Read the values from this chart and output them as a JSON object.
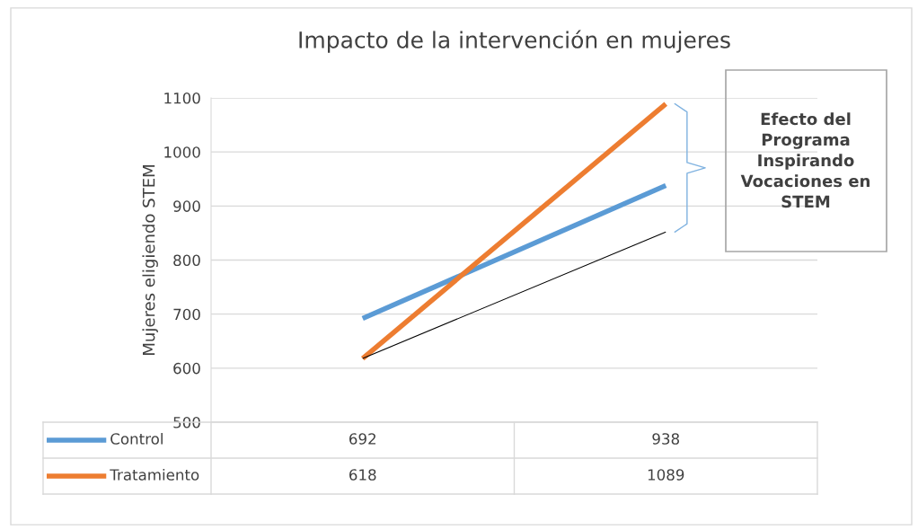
{
  "chart_data": {
    "type": "line",
    "title": "Impacto de la intervención en mujeres",
    "ylabel": "Mujeres eligiendo STEM",
    "categories": [
      null,
      null
    ],
    "series": [
      {
        "name": "Control",
        "color": "#5b9bd5",
        "values": [
          692,
          938
        ],
        "value_labels": [
          "692",
          "938"
        ]
      },
      {
        "name": "Tratamiento",
        "color": "#ed7d31",
        "values": [
          618,
          1089
        ],
        "value_labels": [
          "618",
          "1089"
        ]
      },
      {
        "type": "line",
        "color": "#000000",
        "values": [
          618,
          852
        ]
      }
    ],
    "ylim": [
      500,
      1100
    ],
    "yticks": [
      500,
      600,
      700,
      800,
      900,
      1000,
      1100
    ],
    "grid": "y",
    "legend": "bottom",
    "marker": "none",
    "annotations": [
      "Efecto del Programa Inspirando Vocaciones en STEM"
    ]
  }
}
